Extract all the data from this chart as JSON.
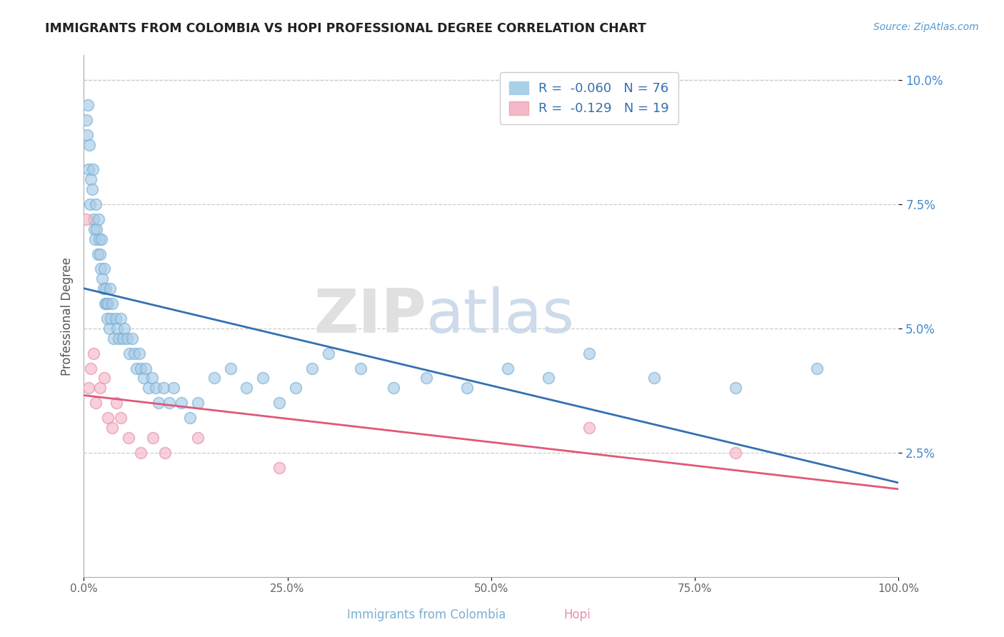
{
  "title": "IMMIGRANTS FROM COLOMBIA VS HOPI PROFESSIONAL DEGREE CORRELATION CHART",
  "source_text": "Source: ZipAtlas.com",
  "ylabel": "Professional Degree",
  "xlim": [
    0,
    100
  ],
  "ylim": [
    0,
    10.5
  ],
  "xticks": [
    0,
    25,
    50,
    75,
    100
  ],
  "xtick_labels": [
    "0.0%",
    "25.0%",
    "50.0%",
    "75.0%",
    "100.0%"
  ],
  "yticks": [
    2.5,
    5.0,
    7.5,
    10.0
  ],
  "ytick_labels": [
    "2.5%",
    "5.0%",
    "7.5%",
    "10.0%"
  ],
  "colombia_R": -0.06,
  "colombia_N": 76,
  "hopi_R": -0.129,
  "hopi_N": 19,
  "colombia_color": "#a8cce8",
  "colombia_edge_color": "#7ab0d4",
  "hopi_color": "#f4b8c8",
  "hopi_edge_color": "#e890a8",
  "colombia_line_color": "#3370b0",
  "hopi_line_color": "#e05878",
  "grid_color": "#cccccc",
  "background_color": "#ffffff",
  "colombia_legend_color": "#a8d0e8",
  "hopi_legend_color": "#f4b8c8",
  "legend_R_color": "#333333",
  "legend_N_color": "#3370b0",
  "colombia_x": [
    0.3,
    0.4,
    0.5,
    0.6,
    0.7,
    0.8,
    0.9,
    1.0,
    1.1,
    1.2,
    1.3,
    1.4,
    1.5,
    1.6,
    1.7,
    1.8,
    1.9,
    2.0,
    2.1,
    2.2,
    2.3,
    2.4,
    2.5,
    2.6,
    2.7,
    2.8,
    2.9,
    3.0,
    3.1,
    3.2,
    3.3,
    3.5,
    3.7,
    3.9,
    4.1,
    4.3,
    4.5,
    4.8,
    5.0,
    5.3,
    5.6,
    5.9,
    6.2,
    6.5,
    6.8,
    7.0,
    7.3,
    7.6,
    8.0,
    8.4,
    8.8,
    9.2,
    9.8,
    10.5,
    11.0,
    12.0,
    13.0,
    14.0,
    16.0,
    18.0,
    20.0,
    22.0,
    24.0,
    26.0,
    28.0,
    30.0,
    34.0,
    38.0,
    42.0,
    47.0,
    52.0,
    57.0,
    62.0,
    70.0,
    80.0,
    90.0
  ],
  "colombia_y": [
    9.2,
    8.9,
    9.5,
    8.2,
    8.7,
    7.5,
    8.0,
    7.8,
    8.2,
    7.2,
    7.0,
    6.8,
    7.5,
    7.0,
    6.5,
    7.2,
    6.8,
    6.5,
    6.2,
    6.8,
    6.0,
    5.8,
    6.2,
    5.5,
    5.8,
    5.5,
    5.2,
    5.5,
    5.0,
    5.8,
    5.2,
    5.5,
    4.8,
    5.2,
    5.0,
    4.8,
    5.2,
    4.8,
    5.0,
    4.8,
    4.5,
    4.8,
    4.5,
    4.2,
    4.5,
    4.2,
    4.0,
    4.2,
    3.8,
    4.0,
    3.8,
    3.5,
    3.8,
    3.5,
    3.8,
    3.5,
    3.2,
    3.5,
    4.0,
    4.2,
    3.8,
    4.0,
    3.5,
    3.8,
    4.2,
    4.5,
    4.2,
    3.8,
    4.0,
    3.8,
    4.2,
    4.0,
    4.5,
    4.0,
    3.8,
    4.2
  ],
  "hopi_x": [
    0.3,
    0.6,
    0.9,
    1.2,
    1.5,
    2.0,
    2.5,
    3.0,
    3.5,
    4.0,
    4.5,
    5.5,
    7.0,
    8.5,
    10.0,
    14.0,
    24.0,
    62.0,
    80.0
  ],
  "hopi_y": [
    7.2,
    3.8,
    4.2,
    4.5,
    3.5,
    3.8,
    4.0,
    3.2,
    3.0,
    3.5,
    3.2,
    2.8,
    2.5,
    2.8,
    2.5,
    2.8,
    2.2,
    3.0,
    2.5
  ]
}
